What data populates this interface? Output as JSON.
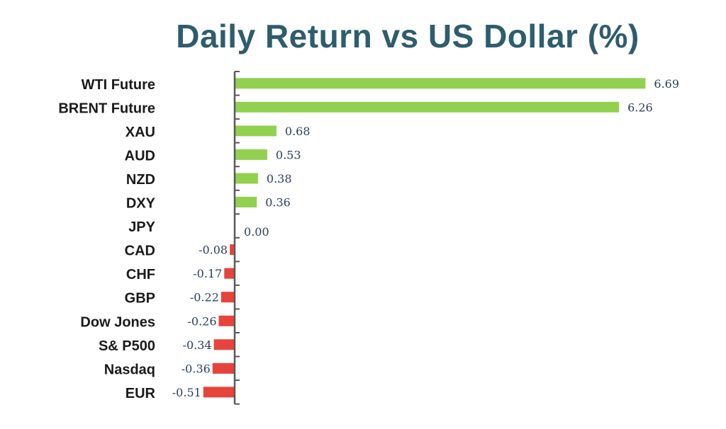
{
  "chart_data": {
    "type": "bar",
    "orientation": "horizontal",
    "title": "Daily Return vs US Dollar (%)",
    "categories": [
      "WTI Future",
      "BRENT Future",
      "XAU",
      "AUD",
      "NZD",
      "DXY",
      "JPY",
      "CAD",
      "CHF",
      "GBP",
      "Dow Jones",
      "S& P500",
      "Nasdaq",
      "EUR"
    ],
    "values": [
      6.69,
      6.26,
      0.68,
      0.53,
      0.38,
      0.36,
      0.0,
      -0.08,
      -0.17,
      -0.22,
      -0.26,
      -0.34,
      -0.36,
      -0.51
    ],
    "value_labels": [
      "6.69",
      "6.26",
      "0.68",
      "0.53",
      "0.38",
      "0.36",
      "0.00",
      "-0.08",
      "-0.17",
      "-0.22",
      "-0.26",
      "-0.34",
      "-0.36",
      "-0.51"
    ],
    "colors": {
      "positive": "#92d050",
      "negative": "#e8433a",
      "axis": "#595959",
      "title": "#2e5d6d"
    },
    "grid": false,
    "legend": "none"
  }
}
